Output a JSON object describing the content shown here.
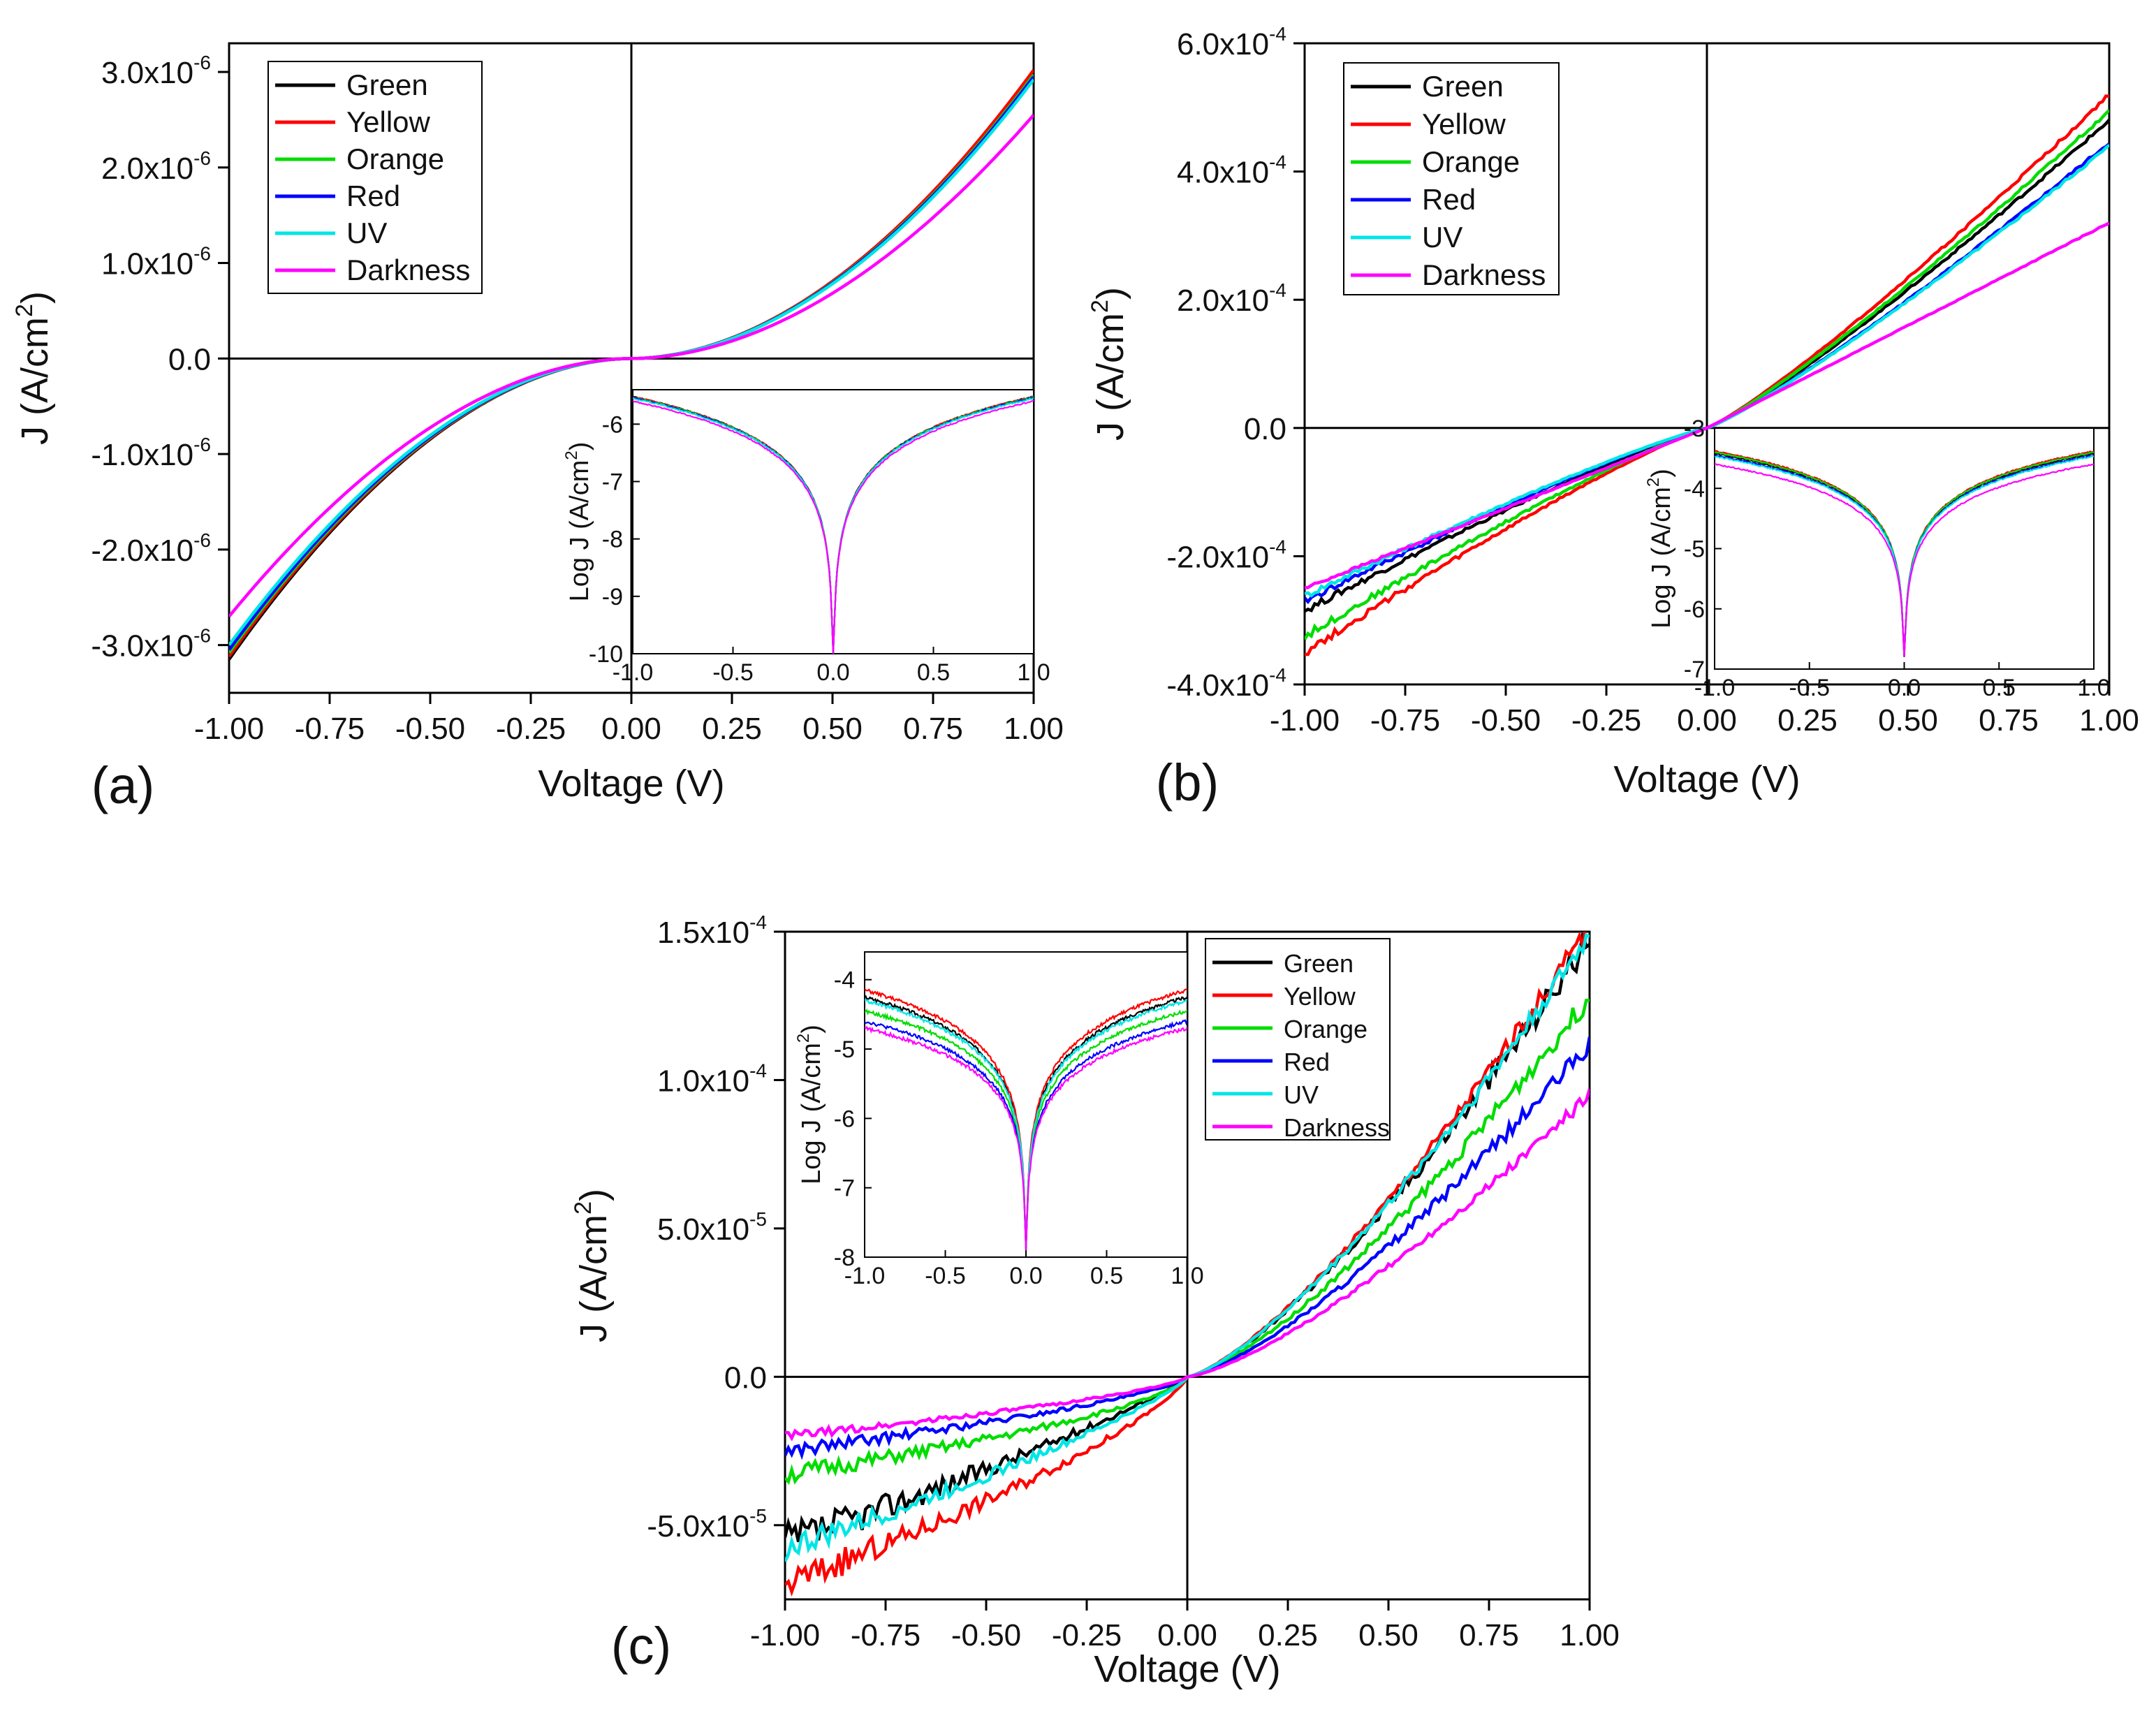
{
  "chart_data": [
    {
      "panel": "(a)",
      "type": "line",
      "xlabel": "Voltage (V)",
      "ylabel": "J (A/cm2)",
      "xlim": [
        -1,
        1
      ],
      "ylim": [
        -3.5e-06,
        3.3e-06
      ],
      "xticks": [
        "-1.00",
        "-0.75",
        "-0.50",
        "-0.25",
        "0.00",
        "0.25",
        "0.50",
        "0.75",
        "1.00"
      ],
      "yticks": [
        {
          "value": 3e-06,
          "mant": "3.0x10",
          "exp": "-6"
        },
        {
          "value": 2e-06,
          "mant": "2.0x10",
          "exp": "-6"
        },
        {
          "value": 1e-06,
          "mant": "1.0x10",
          "exp": "-6"
        },
        {
          "value": 0,
          "mant": "0.0",
          "exp": ""
        },
        {
          "value": -1e-06,
          "mant": "-1.0x10",
          "exp": "-6"
        },
        {
          "value": -2e-06,
          "mant": "-2.0x10",
          "exp": "-6"
        },
        {
          "value": -3e-06,
          "mant": "-3.0x10",
          "exp": "-6"
        }
      ],
      "legend_position": "top-left",
      "series": [
        {
          "name": "Green",
          "color": "#000000",
          "neg": -3.15e-06,
          "pos": 3e-06,
          "shape": 1.9,
          "noise": 0
        },
        {
          "name": "Yellow",
          "color": "#ff0000",
          "neg": -3.12e-06,
          "pos": 3.02e-06,
          "shape": 1.9,
          "noise": 0
        },
        {
          "name": "Orange",
          "color": "#00dd00",
          "neg": -3.08e-06,
          "pos": 2.97e-06,
          "shape": 1.9,
          "noise": 0
        },
        {
          "name": "Red",
          "color": "#0000ff",
          "neg": -3.05e-06,
          "pos": 2.95e-06,
          "shape": 1.9,
          "noise": 0
        },
        {
          "name": "UV",
          "color": "#00e5e5",
          "neg": -3e-06,
          "pos": 2.92e-06,
          "shape": 1.9,
          "noise": 0
        },
        {
          "name": "Darkness",
          "color": "#ff00ff",
          "neg": -2.7e-06,
          "pos": 2.55e-06,
          "shape": 1.9,
          "noise": 0
        }
      ],
      "inset": {
        "xlim": [
          -1,
          1
        ],
        "ylim": [
          -10,
          -5.4
        ],
        "xticks": [
          "-1.0",
          "-0.5",
          "0.0",
          "0.5",
          "1.0"
        ],
        "yticks": [
          "-6",
          "-7",
          "-8",
          "-9",
          "-10"
        ],
        "ylabel": "Log J (A/cm2)",
        "edge_values": [
          -5.52,
          -5.52,
          -5.53,
          -5.54,
          -5.55,
          -5.6
        ],
        "min": -10
      }
    },
    {
      "panel": "(b)",
      "type": "line",
      "xlabel": "Voltage (V)",
      "ylabel": "J (A/cm2)",
      "xlim": [
        -1,
        1
      ],
      "ylim": [
        -0.0004,
        0.0006
      ],
      "xticks": [
        "-1.00",
        "-0.75",
        "-0.50",
        "-0.25",
        "0.00",
        "0.25",
        "0.50",
        "0.75",
        "1.00"
      ],
      "yticks": [
        {
          "value": 0.0006,
          "mant": "6.0x10",
          "exp": "-4"
        },
        {
          "value": 0.0004,
          "mant": "4.0x10",
          "exp": "-4"
        },
        {
          "value": 0.0002,
          "mant": "2.0x10",
          "exp": "-4"
        },
        {
          "value": 0,
          "mant": "0.0",
          "exp": ""
        },
        {
          "value": -0.0002,
          "mant": "-2.0x10",
          "exp": "-4"
        },
        {
          "value": -0.0004,
          "mant": "-4.0x10",
          "exp": "-4"
        }
      ],
      "legend_position": "top-left",
      "series": [
        {
          "name": "Green",
          "color": "#000000",
          "neg": -0.000285,
          "pos": 0.00048,
          "shape": 1.15,
          "noise": 0.01
        },
        {
          "name": "Yellow",
          "color": "#ff0000",
          "neg": -0.00035,
          "pos": 0.00052,
          "shape": 1.15,
          "noise": 0.01
        },
        {
          "name": "Orange",
          "color": "#00dd00",
          "neg": -0.000325,
          "pos": 0.000495,
          "shape": 1.15,
          "noise": 0.01
        },
        {
          "name": "Red",
          "color": "#0000ff",
          "neg": -0.00027,
          "pos": 0.000445,
          "shape": 1.15,
          "noise": 0.01
        },
        {
          "name": "UV",
          "color": "#00e5e5",
          "neg": -0.000262,
          "pos": 0.00044,
          "shape": 1.15,
          "noise": 0.01
        },
        {
          "name": "Darkness",
          "color": "#ff00ff",
          "neg": -0.00025,
          "pos": 0.00032,
          "shape": 1.0,
          "noise": 0.005
        }
      ],
      "inset": {
        "xlim": [
          -1,
          1
        ],
        "ylim": [
          -7,
          -3
        ],
        "xticks": [
          "-1.0",
          "-0.5",
          "0.0",
          "0.5",
          "1.0"
        ],
        "yticks": [
          "-3",
          "-4",
          "-5",
          "-6",
          "-7"
        ],
        "ylabel": "Log J (A/cm2)",
        "edge_values": [
          -3.42,
          -3.38,
          -3.4,
          -3.45,
          -3.47,
          -3.6
        ],
        "min": -6.8
      }
    },
    {
      "panel": "(c)",
      "type": "line",
      "xlabel": "Voltage (V)",
      "ylabel": "J (A/cm2)",
      "xlim": [
        -1,
        1
      ],
      "ylim": [
        -7.5e-05,
        0.00015
      ],
      "xticks": [
        "-1.00",
        "-0.75",
        "-0.50",
        "-0.25",
        "0.00",
        "0.25",
        "0.50",
        "0.75",
        "1.00"
      ],
      "yticks": [
        {
          "value": 0.00015,
          "mant": "1.5x10",
          "exp": "-4"
        },
        {
          "value": 0.0001,
          "mant": "1.0x10",
          "exp": "-4"
        },
        {
          "value": 5e-05,
          "mant": "5.0x10",
          "exp": "-5"
        },
        {
          "value": 0,
          "mant": "0.0",
          "exp": ""
        },
        {
          "value": -5e-05,
          "mant": "-5.0x10",
          "exp": "-5"
        }
      ],
      "legend_position": "top-right",
      "series": [
        {
          "name": "Green",
          "color": "#000000",
          "neg": -5.6e-05,
          "pos": 0.000148,
          "shape": 0.85,
          "pshape": 1.35,
          "noise": 0.06
        },
        {
          "name": "Yellow",
          "color": "#ff0000",
          "neg": -7e-05,
          "pos": 0.000152,
          "shape": 0.75,
          "pshape": 1.35,
          "noise": 0.04
        },
        {
          "name": "Orange",
          "color": "#00dd00",
          "neg": -3.3e-05,
          "pos": 0.000128,
          "shape": 0.65,
          "pshape": 1.35,
          "noise": 0.05
        },
        {
          "name": "Red",
          "color": "#0000ff",
          "neg": -2.5e-05,
          "pos": 0.000112,
          "shape": 0.7,
          "pshape": 1.35,
          "noise": 0.05
        },
        {
          "name": "UV",
          "color": "#00e5e5",
          "neg": -5.8e-05,
          "pos": 0.000149,
          "shape": 0.8,
          "pshape": 1.35,
          "noise": 0.04
        },
        {
          "name": "Darkness",
          "color": "#ff00ff",
          "neg": -2e-05,
          "pos": 9.5e-05,
          "shape": 0.7,
          "pshape": 1.35,
          "noise": 0.04
        }
      ],
      "inset": {
        "xlim": [
          -1,
          1
        ],
        "ylim": [
          -8,
          -3.6
        ],
        "xticks": [
          "-1.0",
          "-0.5",
          "0.0",
          "0.5",
          "1.0"
        ],
        "yticks": [
          "-4",
          "-5",
          "-6",
          "-7",
          "-8"
        ],
        "ylabel": "Log J (A/cm2)",
        "edge_values": [
          -4.25,
          -4.15,
          -4.45,
          -4.6,
          -4.3,
          -4.7
        ],
        "min": -7.9
      }
    }
  ]
}
